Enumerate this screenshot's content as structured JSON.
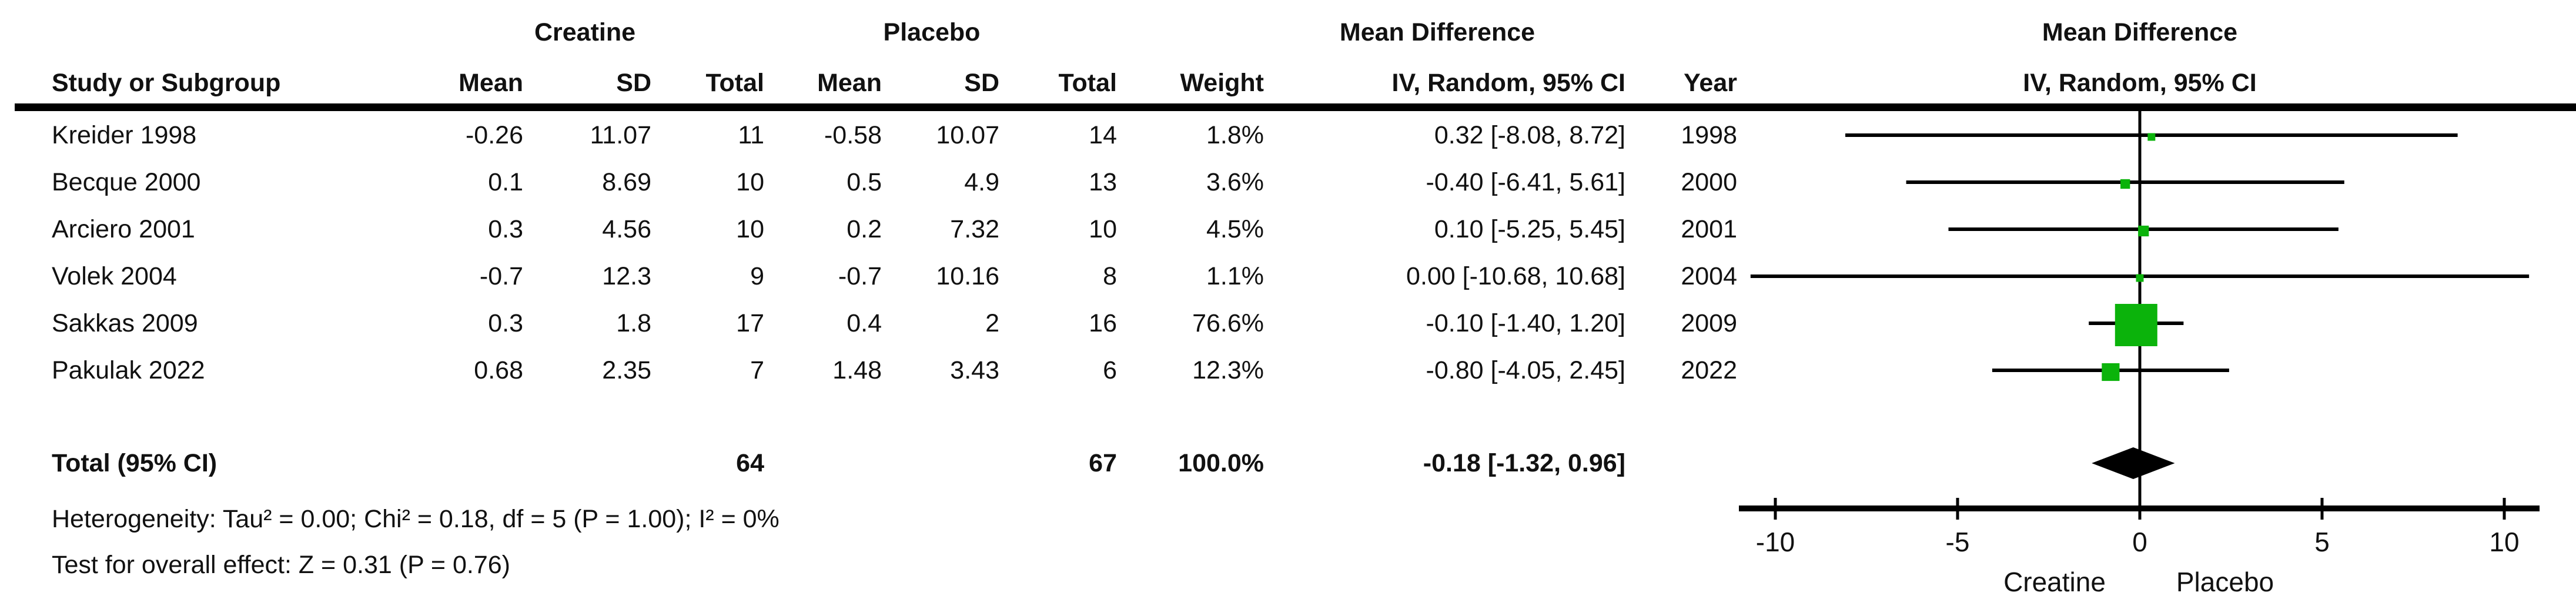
{
  "table": {
    "study_col_header": "Study or Subgroup",
    "group1_header": "Creatine",
    "group2_header": "Placebo",
    "md_col_header": "Mean Difference",
    "col_mean": "Mean",
    "col_sd": "SD",
    "col_total": "Total",
    "col_weight": "Weight",
    "ci_col_header": "IV, Random, 95% CI",
    "year_col_header": "Year",
    "rows": [
      {
        "study": "Kreider 1998",
        "mean1": "-0.26",
        "sd1": "11.07",
        "n1": "11",
        "mean2": "-0.58",
        "sd2": "10.07",
        "n2": "14",
        "weight": "1.8%",
        "md_ci": "0.32 [-8.08, 8.72]",
        "year": "1998"
      },
      {
        "study": "Becque 2000",
        "mean1": "0.1",
        "sd1": "8.69",
        "n1": "10",
        "mean2": "0.5",
        "sd2": "4.9",
        "n2": "13",
        "weight": "3.6%",
        "md_ci": "-0.40 [-6.41, 5.61]",
        "year": "2000"
      },
      {
        "study": "Arciero 2001",
        "mean1": "0.3",
        "sd1": "4.56",
        "n1": "10",
        "mean2": "0.2",
        "sd2": "7.32",
        "n2": "10",
        "weight": "4.5%",
        "md_ci": "0.10 [-5.25, 5.45]",
        "year": "2001"
      },
      {
        "study": "Volek 2004",
        "mean1": "-0.7",
        "sd1": "12.3",
        "n1": "9",
        "mean2": "-0.7",
        "sd2": "10.16",
        "n2": "8",
        "weight": "1.1%",
        "md_ci": "0.00 [-10.68, 10.68]",
        "year": "2004"
      },
      {
        "study": "Sakkas 2009",
        "mean1": "0.3",
        "sd1": "1.8",
        "n1": "17",
        "mean2": "0.4",
        "sd2": "2",
        "n2": "16",
        "weight": "76.6%",
        "md_ci": "-0.10 [-1.40, 1.20]",
        "year": "2009"
      },
      {
        "study": "Pakulak 2022",
        "mean1": "0.68",
        "sd1": "2.35",
        "n1": "7",
        "mean2": "1.48",
        "sd2": "3.43",
        "n2": "6",
        "weight": "12.3%",
        "md_ci": "-0.80 [-4.05, 2.45]",
        "year": "2022"
      }
    ],
    "total_row": {
      "label": "Total (95% CI)",
      "n1": "64",
      "n2": "67",
      "weight": "100.0%",
      "md_ci": "-0.18 [-1.32, 0.96]"
    },
    "heterogeneity": "Heterogeneity: Tau² = 0.00; Chi² = 0.18, df = 5 (P = 1.00); I² = 0%",
    "overall_effect": "Test for overall effect: Z = 0.31 (P = 0.76)"
  },
  "plot": {
    "header_line1": "Mean Difference",
    "header_line2": "IV, Random, 95% CI",
    "xlabel_left": "Creatine",
    "xlabel_right": "Placebo",
    "marker_color": "#0bb30b",
    "diamond_color": "#000000",
    "line_color": "#000000"
  },
  "chart_data": {
    "type": "forest",
    "title": "Mean Difference — IV, Random, 95% CI (Creatine vs Placebo)",
    "effect_measure": "Mean Difference",
    "model": "IV, Random, 95% CI",
    "xlim": [
      -11,
      11
    ],
    "ticks": [
      -10,
      -5,
      0,
      5,
      10
    ],
    "zero_line": 0,
    "studies": [
      {
        "name": "Kreider 1998",
        "md": 0.32,
        "ci_low": -8.08,
        "ci_high": 8.72,
        "weight_pct": 1.8,
        "year": 1998
      },
      {
        "name": "Becque 2000",
        "md": -0.4,
        "ci_low": -6.41,
        "ci_high": 5.61,
        "weight_pct": 3.6,
        "year": 2000
      },
      {
        "name": "Arciero 2001",
        "md": 0.1,
        "ci_low": -5.25,
        "ci_high": 5.45,
        "weight_pct": 4.5,
        "year": 2001
      },
      {
        "name": "Volek 2004",
        "md": 0.0,
        "ci_low": -10.68,
        "ci_high": 10.68,
        "weight_pct": 1.1,
        "year": 2004
      },
      {
        "name": "Sakkas 2009",
        "md": -0.1,
        "ci_low": -1.4,
        "ci_high": 1.2,
        "weight_pct": 76.6,
        "year": 2009
      },
      {
        "name": "Pakulak 2022",
        "md": -0.8,
        "ci_low": -4.05,
        "ci_high": 2.45,
        "weight_pct": 12.3,
        "year": 2022
      }
    ],
    "total": {
      "label": "Total (95% CI)",
      "md": -0.18,
      "ci_low": -1.32,
      "ci_high": 0.96,
      "weight_pct": 100.0
    }
  }
}
